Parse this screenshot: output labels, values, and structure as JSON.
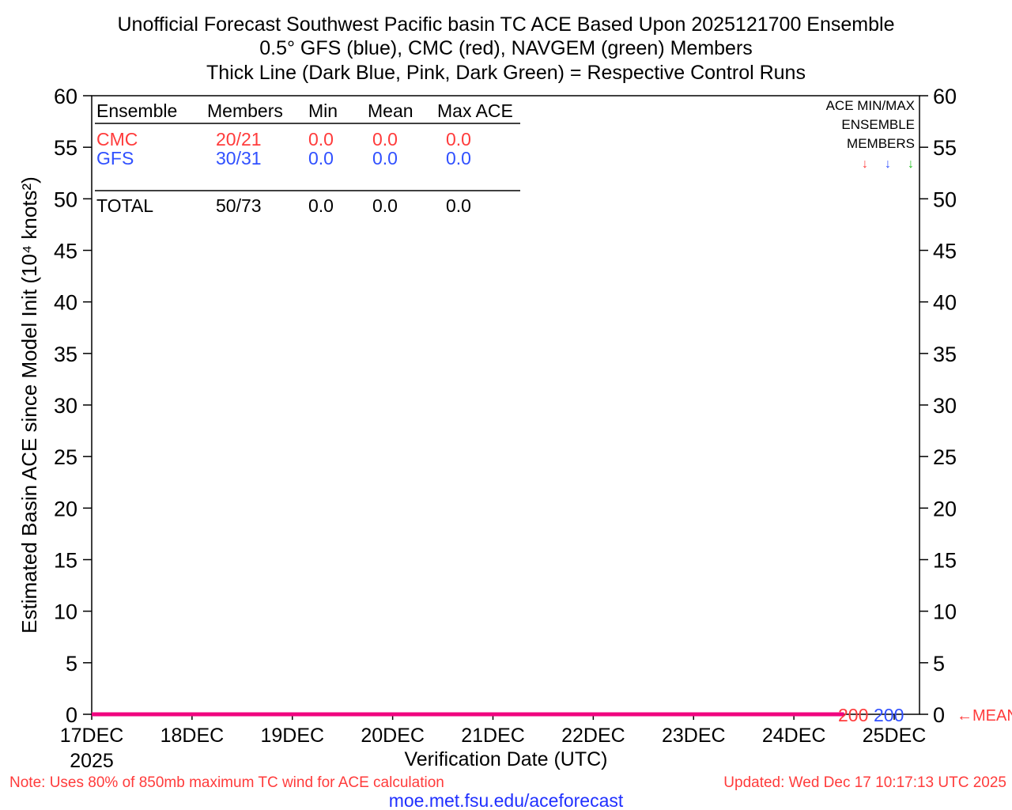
{
  "chart_data": {
    "type": "line",
    "title_lines": [
      "Unofficial Forecast Southwest Pacific basin TC ACE Based Upon 2025121700 Ensemble",
      "0.5° GFS (blue), CMC (red), NAVGEM (green) Members",
      "Thick Line (Dark Blue, Pink, Dark Green) = Respective Control Runs"
    ],
    "ylabel": "Estimated Basin ACE since Model Init (10⁴ knots²)",
    "xlabel": "Verification Date (UTC)",
    "ylim": [
      0,
      60
    ],
    "yticks": [
      "0",
      "5",
      "10",
      "15",
      "20",
      "25",
      "30",
      "35",
      "40",
      "45",
      "50",
      "55",
      "60"
    ],
    "xticks": [
      "17DEC",
      "18DEC",
      "19DEC",
      "20DEC",
      "21DEC",
      "22DEC",
      "23DEC",
      "24DEC",
      "25DEC"
    ],
    "xtick_year": "2025",
    "series": [
      {
        "name": "CMC control (pink)",
        "color": "#f0047f",
        "x_days": [
          0,
          7.5
        ],
        "values": [
          0.0,
          0.0
        ]
      }
    ],
    "end_labels": [
      {
        "text": "200",
        "color": "#ff3b3b"
      },
      {
        "text": "200",
        "color": "#3050ff"
      }
    ],
    "mean_marker": {
      "text": "←MEAN",
      "color": "#ff3b3b"
    },
    "minmax_box": {
      "lines": [
        "ACE MIN/MAX",
        "ENSEMBLE",
        "MEMBERS"
      ],
      "arrows": [
        {
          "text": "↓",
          "color": "#ff3b3b"
        },
        {
          "text": "↓",
          "color": "#3050ff"
        },
        {
          "text": "↓",
          "color": "#20c020"
        }
      ]
    },
    "table": {
      "headers": [
        "Ensemble",
        "Members",
        "Min",
        "Mean",
        "Max ACE"
      ],
      "rows": [
        {
          "cells": [
            "CMC",
            "20/21",
            "0.0",
            "0.0",
            "0.0"
          ],
          "color": "#ff3b3b"
        },
        {
          "cells": [
            "GFS",
            "30/31",
            "0.0",
            "0.0",
            "0.0"
          ],
          "color": "#3050ff"
        }
      ],
      "total": {
        "cells": [
          "TOTAL",
          "50/73",
          "0.0",
          "0.0",
          "0.0"
        ],
        "color": "#000000"
      }
    }
  },
  "footer": {
    "note": "Note:  Uses 80% of 850mb maximum TC wind for ACE calculation",
    "updated": "Updated: Wed Dec 17 10:17:13 UTC 2025",
    "url": "moe.met.fsu.edu/aceforecast"
  }
}
